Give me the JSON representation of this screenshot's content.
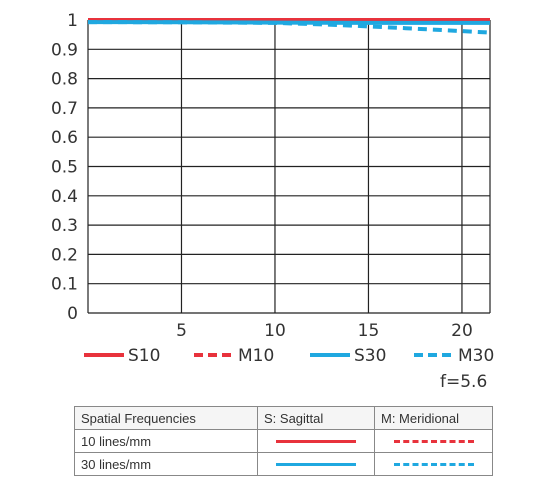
{
  "chart_data": {
    "type": "line",
    "title": "",
    "xlabel": "",
    "ylabel": "",
    "xlim": [
      0,
      21.5
    ],
    "ylim": [
      0,
      1
    ],
    "x_ticks": [
      "5",
      "10",
      "15",
      "20"
    ],
    "y_ticks": [
      "0",
      "0.1",
      "0.2",
      "0.3",
      "0.4",
      "0.5",
      "0.6",
      "0.7",
      "0.8",
      "0.9",
      "1"
    ],
    "grid": true,
    "series": [
      {
        "name": "S10",
        "color": "#e8323c",
        "dash": "solid",
        "x": [
          0,
          5,
          10,
          15,
          20,
          21.5
        ],
        "y": [
          1.0,
          1.0,
          1.0,
          1.0,
          1.0,
          1.0
        ]
      },
      {
        "name": "M10",
        "color": "#e8323c",
        "dash": "dashed",
        "x": [
          0,
          5,
          10,
          15,
          20,
          21.5
        ],
        "y": [
          1.0,
          1.0,
          1.0,
          0.998,
          0.996,
          0.995
        ]
      },
      {
        "name": "S30",
        "color": "#1fa8e0",
        "dash": "solid",
        "x": [
          0,
          5,
          10,
          15,
          20,
          21.5
        ],
        "y": [
          0.993,
          0.992,
          0.991,
          0.99,
          0.99,
          0.99
        ]
      },
      {
        "name": "M30",
        "color": "#1fa8e0",
        "dash": "dashed",
        "x": [
          0,
          5,
          10,
          13,
          15,
          17,
          20,
          21.5
        ],
        "y": [
          0.993,
          0.992,
          0.99,
          0.984,
          0.978,
          0.972,
          0.962,
          0.957
        ]
      }
    ]
  },
  "aperture": "f=5.6",
  "legend_table": {
    "headers": [
      "Spatial Frequencies",
      "S: Sagittal",
      "M: Meridional"
    ],
    "rows": [
      {
        "label": "10 lines/mm",
        "color": "#e8323c"
      },
      {
        "label": "30 lines/mm",
        "color": "#1fa8e0"
      }
    ]
  }
}
